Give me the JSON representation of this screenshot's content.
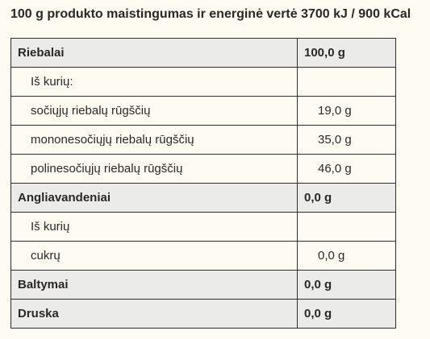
{
  "heading": "100 g produkto maistingumas ir energinė vertė 3700 kJ / 900 kCal",
  "rows": [
    {
      "name": "Riebalai",
      "value": "100,0 g",
      "kind": "main"
    },
    {
      "name": "Iš kurių:",
      "value": "",
      "kind": "sub"
    },
    {
      "name": "sočiųjų riebalų rūgščių",
      "value": "19,0 g",
      "kind": "sub"
    },
    {
      "name": "mononesočiųjų riebalų rūgščių",
      "value": "35,0 g",
      "kind": "sub"
    },
    {
      "name": "polinesočiųjų riebalų rūgščių",
      "value": "46,0 g",
      "kind": "sub"
    },
    {
      "name": "Angliavandeniai",
      "value": "0,0 g",
      "kind": "main"
    },
    {
      "name": "Iš kurių",
      "value": "",
      "kind": "sub"
    },
    {
      "name": "cukrų",
      "value": "0,0 g",
      "kind": "sub"
    },
    {
      "name": "Baltymai",
      "value": "0,0 g",
      "kind": "main"
    },
    {
      "name": "Druska",
      "value": "0,0 g",
      "kind": "main"
    }
  ]
}
